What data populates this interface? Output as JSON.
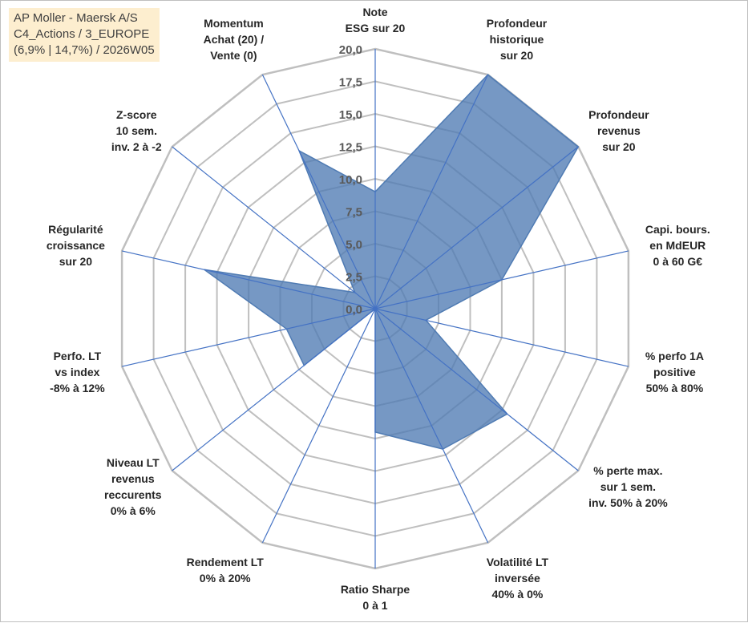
{
  "title_box": {
    "line1": "AP Moller - Maersk A/S",
    "line2": "C4_Actions / 3_EUROPE",
    "line3": "(6,9% | 14,7%) / 2026W05"
  },
  "colors": {
    "fill": "#4f7bb3",
    "spoke": "#4472c4",
    "grid": "#bfbfbf",
    "background": "#ffffff",
    "title_box": "#fdeecf"
  },
  "chart_data": {
    "type": "radar",
    "title": "",
    "rmin": 0,
    "rmax": 20,
    "ticks": [
      "0,0",
      "2,5",
      "5,0",
      "7,5",
      "10,0",
      "12,5",
      "15,0",
      "17,5",
      "20,0"
    ],
    "grid": true,
    "categories": [
      [
        "Note",
        "ESG sur 20"
      ],
      [
        "Profondeur",
        "historique",
        "sur 20"
      ],
      [
        "Profondeur",
        "revenus",
        "sur 20"
      ],
      [
        "Capi. bours.",
        "en MdEUR",
        "0 à 60 G€"
      ],
      [
        "% perfo 1A",
        "positive",
        "50% à 80%"
      ],
      [
        "% perte max.",
        "sur 1 sem.",
        "inv. 50% à 20%"
      ],
      [
        "Volatilité LT",
        "inversée",
        "40% à 0%"
      ],
      [
        "Ratio Sharpe",
        "0 à 1"
      ],
      [
        "Rendement LT",
        "0% à 20%"
      ],
      [
        "Niveau LT",
        "revenus",
        "reccurents",
        "0% à 6%"
      ],
      [
        "Perfo. LT",
        "vs index",
        "-8% à 12%"
      ],
      [
        "Régularité",
        "croissance",
        "sur 20"
      ],
      [
        "Z-score",
        "10 sem.",
        "inv. 2 à -2"
      ],
      [
        "Momentum",
        "Achat (20) /",
        "Vente (0)"
      ]
    ],
    "series": [
      {
        "values": [
          9.0,
          20.0,
          20.0,
          10.0,
          4.0,
          13.0,
          12.0,
          9.5,
          0.0,
          7.0,
          7.0,
          13.5,
          2.0,
          13.5
        ]
      }
    ]
  }
}
